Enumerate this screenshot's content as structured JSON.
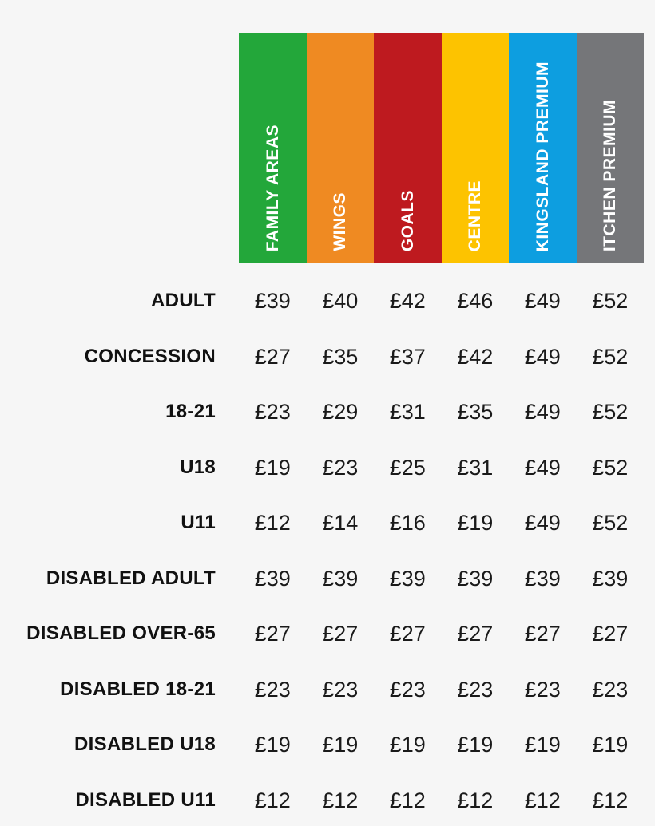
{
  "chart_data": {
    "type": "table",
    "columns": [
      {
        "label": "FAMILY AREAS",
        "color": "#23a73a"
      },
      {
        "label": "WINGS",
        "color": "#ef8a22"
      },
      {
        "label": "GOALS",
        "color": "#be1a1f"
      },
      {
        "label": "CENTRE",
        "color": "#fdc300"
      },
      {
        "label": "KINGSLAND PREMIUM",
        "color": "#0d9ee0"
      },
      {
        "label": "ITCHEN PREMIUM",
        "color": "#757679"
      }
    ],
    "rows": [
      {
        "label": "ADULT",
        "values": [
          "£39",
          "£40",
          "£42",
          "£46",
          "£49",
          "£52"
        ]
      },
      {
        "label": "CONCESSION",
        "values": [
          "£27",
          "£35",
          "£37",
          "£42",
          "£49",
          "£52"
        ]
      },
      {
        "label": "18-21",
        "values": [
          "£23",
          "£29",
          "£31",
          "£35",
          "£49",
          "£52"
        ]
      },
      {
        "label": "U18",
        "values": [
          "£19",
          "£23",
          "£25",
          "£31",
          "£49",
          "£52"
        ]
      },
      {
        "label": "U11",
        "values": [
          "£12",
          "£14",
          "£16",
          "£19",
          "£49",
          "£52"
        ]
      },
      {
        "label": "DISABLED ADULT",
        "values": [
          "£39",
          "£39",
          "£39",
          "£39",
          "£39",
          "£39"
        ]
      },
      {
        "label": "DISABLED OVER-65",
        "values": [
          "£27",
          "£27",
          "£27",
          "£27",
          "£27",
          "£27"
        ]
      },
      {
        "label": "DISABLED 18-21",
        "values": [
          "£23",
          "£23",
          "£23",
          "£23",
          "£23",
          "£23"
        ]
      },
      {
        "label": "DISABLED U18",
        "values": [
          "£19",
          "£19",
          "£19",
          "£19",
          "£19",
          "£19"
        ]
      },
      {
        "label": "DISABLED U11",
        "values": [
          "£12",
          "£12",
          "£12",
          "£12",
          "£12",
          "£12"
        ]
      }
    ]
  }
}
